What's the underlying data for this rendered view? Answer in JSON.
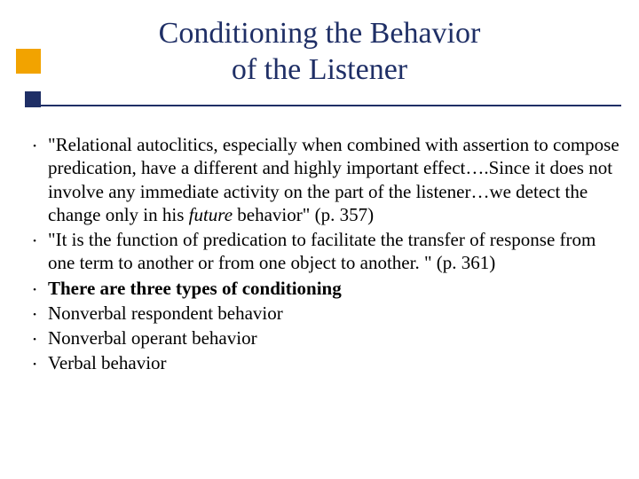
{
  "slide": {
    "title_line1": "Conditioning the Behavior",
    "title_line2": "of the Listener",
    "colors": {
      "title": "#1f2f66",
      "accent_orange": "#f2a300",
      "accent_navy": "#1f2f66",
      "text": "#000000",
      "background": "#ffffff",
      "rule": "#1f2f66"
    },
    "fonts": {
      "family": "Times New Roman",
      "title_size_pt": 26,
      "body_size_pt": 16
    },
    "bullets": [
      {
        "pre": "\"Relational autoclitics, especially when combined with assertion to compose predication, have a different and highly important effect….Since it does not involve any immediate activity on the part of the listener…we detect the change only in his ",
        "italic": "future",
        "post": " behavior\"  (p. 357)"
      },
      {
        "text": "\"It is the function of predication to facilitate the transfer of response from one term to another or from one object to another. \" (p. 361)"
      },
      {
        "text": "There are three types of conditioning",
        "bold": true
      },
      {
        "text": "Nonverbal respondent behavior"
      },
      {
        "text": "Nonverbal operant behavior"
      },
      {
        "text": "Verbal behavior"
      }
    ]
  }
}
